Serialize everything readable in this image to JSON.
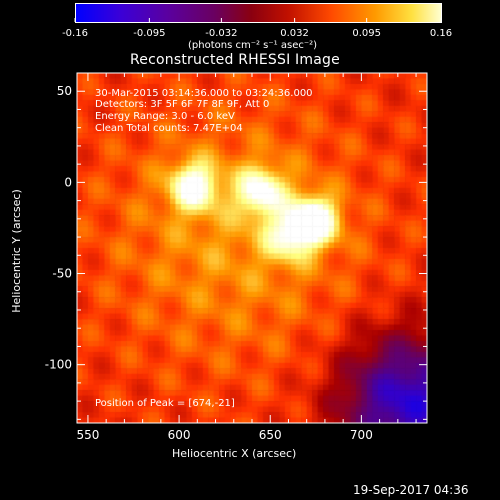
{
  "figure": {
    "title": "Reconstructed RHESSI Image",
    "timestamp_footer": "19-Sep-2017 04:36"
  },
  "colorbar": {
    "tick_labels": [
      "-0.16",
      "-0.095",
      "-0.032",
      "0.032",
      "0.095",
      "0.16"
    ],
    "ticks": [
      -0.16,
      -0.095,
      -0.032,
      0.032,
      0.095,
      0.16
    ],
    "range": [
      -0.16,
      0.16
    ],
    "units_label": "(photons cm⁻² s⁻¹ asec⁻²)"
  },
  "annotations": {
    "time_range": "30-Mar-2015 03:14:36.000 to 03:24:36.000",
    "detectors": "Detectors: 3F 5F 6F 7F 8F 9F, Att 0",
    "energy": "Energy Range: 3.0 - 6.0 keV",
    "method": "Clean     Total counts: 7.47E+04",
    "peak": "Position of Peak = [674,-21]"
  },
  "chart_data": {
    "type": "heatmap",
    "title": "Reconstructed RHESSI Image",
    "xlabel": "Heliocentric X (arcsec)",
    "ylabel": "Heliocentric Y (arcsec)",
    "xlim": [
      544,
      736
    ],
    "ylim": [
      -132,
      60
    ],
    "x_ticks": [
      550,
      600,
      650,
      700
    ],
    "y_ticks": [
      50,
      0,
      -50,
      -100
    ],
    "peak_position": [
      674,
      -21
    ],
    "sources": [
      {
        "x": 674,
        "y": -21,
        "value": 0.16
      },
      {
        "x": 608,
        "y": -2,
        "value": 0.13
      },
      {
        "x": 645,
        "y": -5,
        "value": 0.12
      },
      {
        "x": 660,
        "y": -30,
        "value": 0.09
      }
    ],
    "colormap": [
      "#0000ff",
      "#3300cc",
      "#550088",
      "#770044",
      "#aa0000",
      "#ff3300",
      "#ff9900",
      "#ffff80",
      "#ffffff"
    ]
  }
}
